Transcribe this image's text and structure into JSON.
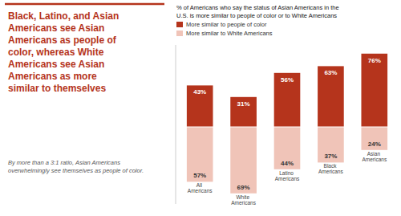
{
  "chart_data": {
    "type": "diverging",
    "title": "% of Americans who say the status of Asian Americans in the\nU.S. is more similar to people of color or to White Americans",
    "annotations": [
      "Black, Latino, and Asian\nAmericans see Asian\nAmericans as people of\ncolor, whereas White\nAmericans see Asian\nAmericans as more\nsimilar to themselves",
      "By more than a 3:1 ratio, Asian Americans\noverwhelm­ingly see themselves as people of color."
    ],
    "categories": [
      "All Americans",
      "White Americans",
      "Latino Americans",
      "Black Americans",
      "Asian Americans"
    ],
    "series": [
      {
        "name": "More similar to people of color",
        "color": "#b5341c",
        "values": [
          43,
          31,
          56,
          63,
          76
        ],
        "value_labels": [
          "43%",
          "31%",
          "56%",
          "63%",
          "76%"
        ]
      },
      {
        "name": "More similar to White Americans",
        "color": "#f0c4b8",
        "values": [
          57,
          69,
          44,
          37,
          24
        ],
        "value_labels": [
          "57%",
          "69%",
          "44%",
          "37%",
          "24%"
        ]
      }
    ],
    "ylim": [
      -80,
      85
    ],
    "data_labels": true,
    "tick_labels": false,
    "grid": false,
    "legend": "upper left"
  }
}
